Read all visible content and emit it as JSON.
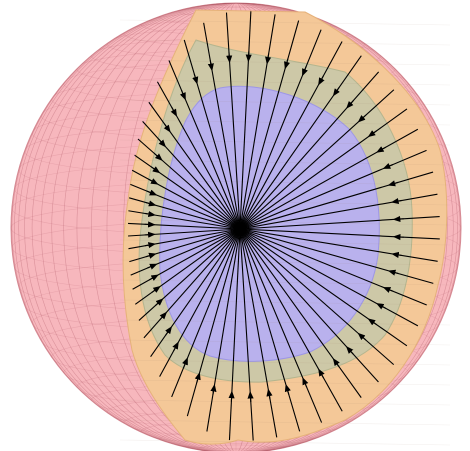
{
  "figure": {
    "kind": "cutaway-sphere-radial-field",
    "layers": [
      {
        "name": "outer-shell",
        "color": "#f5a3aa"
      },
      {
        "name": "middle-shell",
        "color": "#f4c898"
      },
      {
        "name": "inner-shell",
        "color": "#c9c8a8"
      },
      {
        "name": "core",
        "color": "#b7b0f0"
      }
    ],
    "grid_color": "#b35a6a",
    "field_line_color": "#000000",
    "field_direction": "inward",
    "field_line_count": 56
  }
}
